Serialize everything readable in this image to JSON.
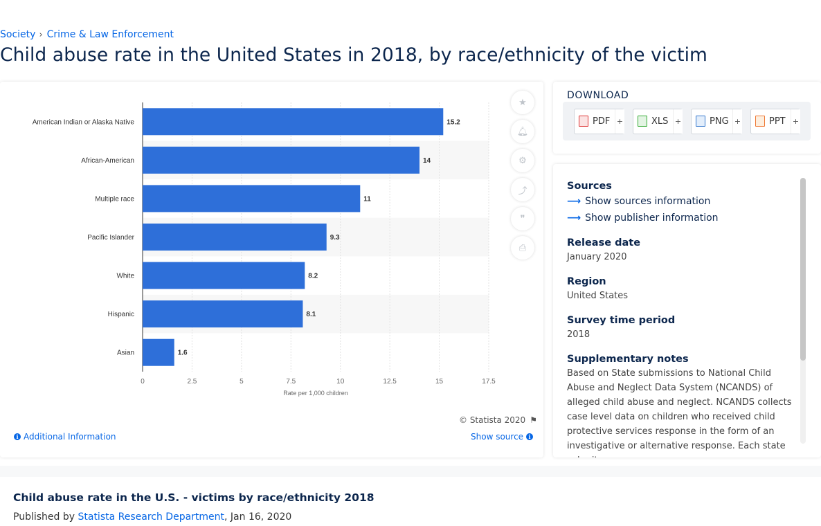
{
  "breadcrumb": {
    "items": [
      "Society",
      "Crime & Law Enforcement"
    ]
  },
  "page_title": "Child abuse rate in the United States in 2018, by race/ethnicity of the victim",
  "chart_data": {
    "type": "bar",
    "orientation": "horizontal",
    "categories": [
      "American Indian or Alaska Native",
      "African-American",
      "Multiple race",
      "Pacific Islander",
      "White",
      "Hispanic",
      "Asian"
    ],
    "values": [
      15.2,
      14,
      11,
      9.3,
      8.2,
      8.1,
      1.6
    ],
    "value_labels": [
      "15.2",
      "14",
      "11",
      "9.3",
      "8.2",
      "8.1",
      "1.6"
    ],
    "xlabel": "Rate per 1,000 children",
    "xlim": [
      0,
      17.5
    ],
    "ticks": [
      0,
      2.5,
      5,
      7.5,
      10,
      12.5,
      15,
      17.5
    ],
    "tick_labels": [
      "0",
      "2.5",
      "5",
      "7.5",
      "10",
      "12.5",
      "15",
      "17.5"
    ],
    "bar_color": "#2e6fd9",
    "grid": true
  },
  "chart_footer": {
    "copyright": "© Statista 2020",
    "additional_info": "Additional Information",
    "show_source": "Show source"
  },
  "tools": [
    "star-icon",
    "bell-icon",
    "gear-icon",
    "share-icon",
    "quote-icon",
    "print-icon"
  ],
  "download": {
    "title": "DOWNLOAD",
    "buttons": [
      {
        "label": "PDF",
        "plus": "+"
      },
      {
        "label": "XLS",
        "plus": "+"
      },
      {
        "label": "PNG",
        "plus": "+"
      },
      {
        "label": "PPT",
        "plus": "+"
      }
    ]
  },
  "details": {
    "sources_head": "Sources",
    "show_sources": "Show sources information",
    "show_publisher": "Show publisher information",
    "release_head": "Release date",
    "release_val": "January 2020",
    "region_head": "Region",
    "region_val": "United States",
    "survey_head": "Survey time period",
    "survey_val": "2018",
    "notes_head": "Supplementary notes",
    "notes_val": "Based on State submissions to National Child Abuse and Neglect Data System (NCANDS) of alleged child abuse and neglect. NCANDS collects case level data on children who received child protective services response in the form of an investigative or alternative response. Each state submits"
  },
  "footer": {
    "title": "Child abuse rate in the U.S. - victims by race/ethnicity 2018",
    "published_prefix": "Published by ",
    "department": "Statista Research Department",
    "date": ", Jan 16, 2020"
  }
}
